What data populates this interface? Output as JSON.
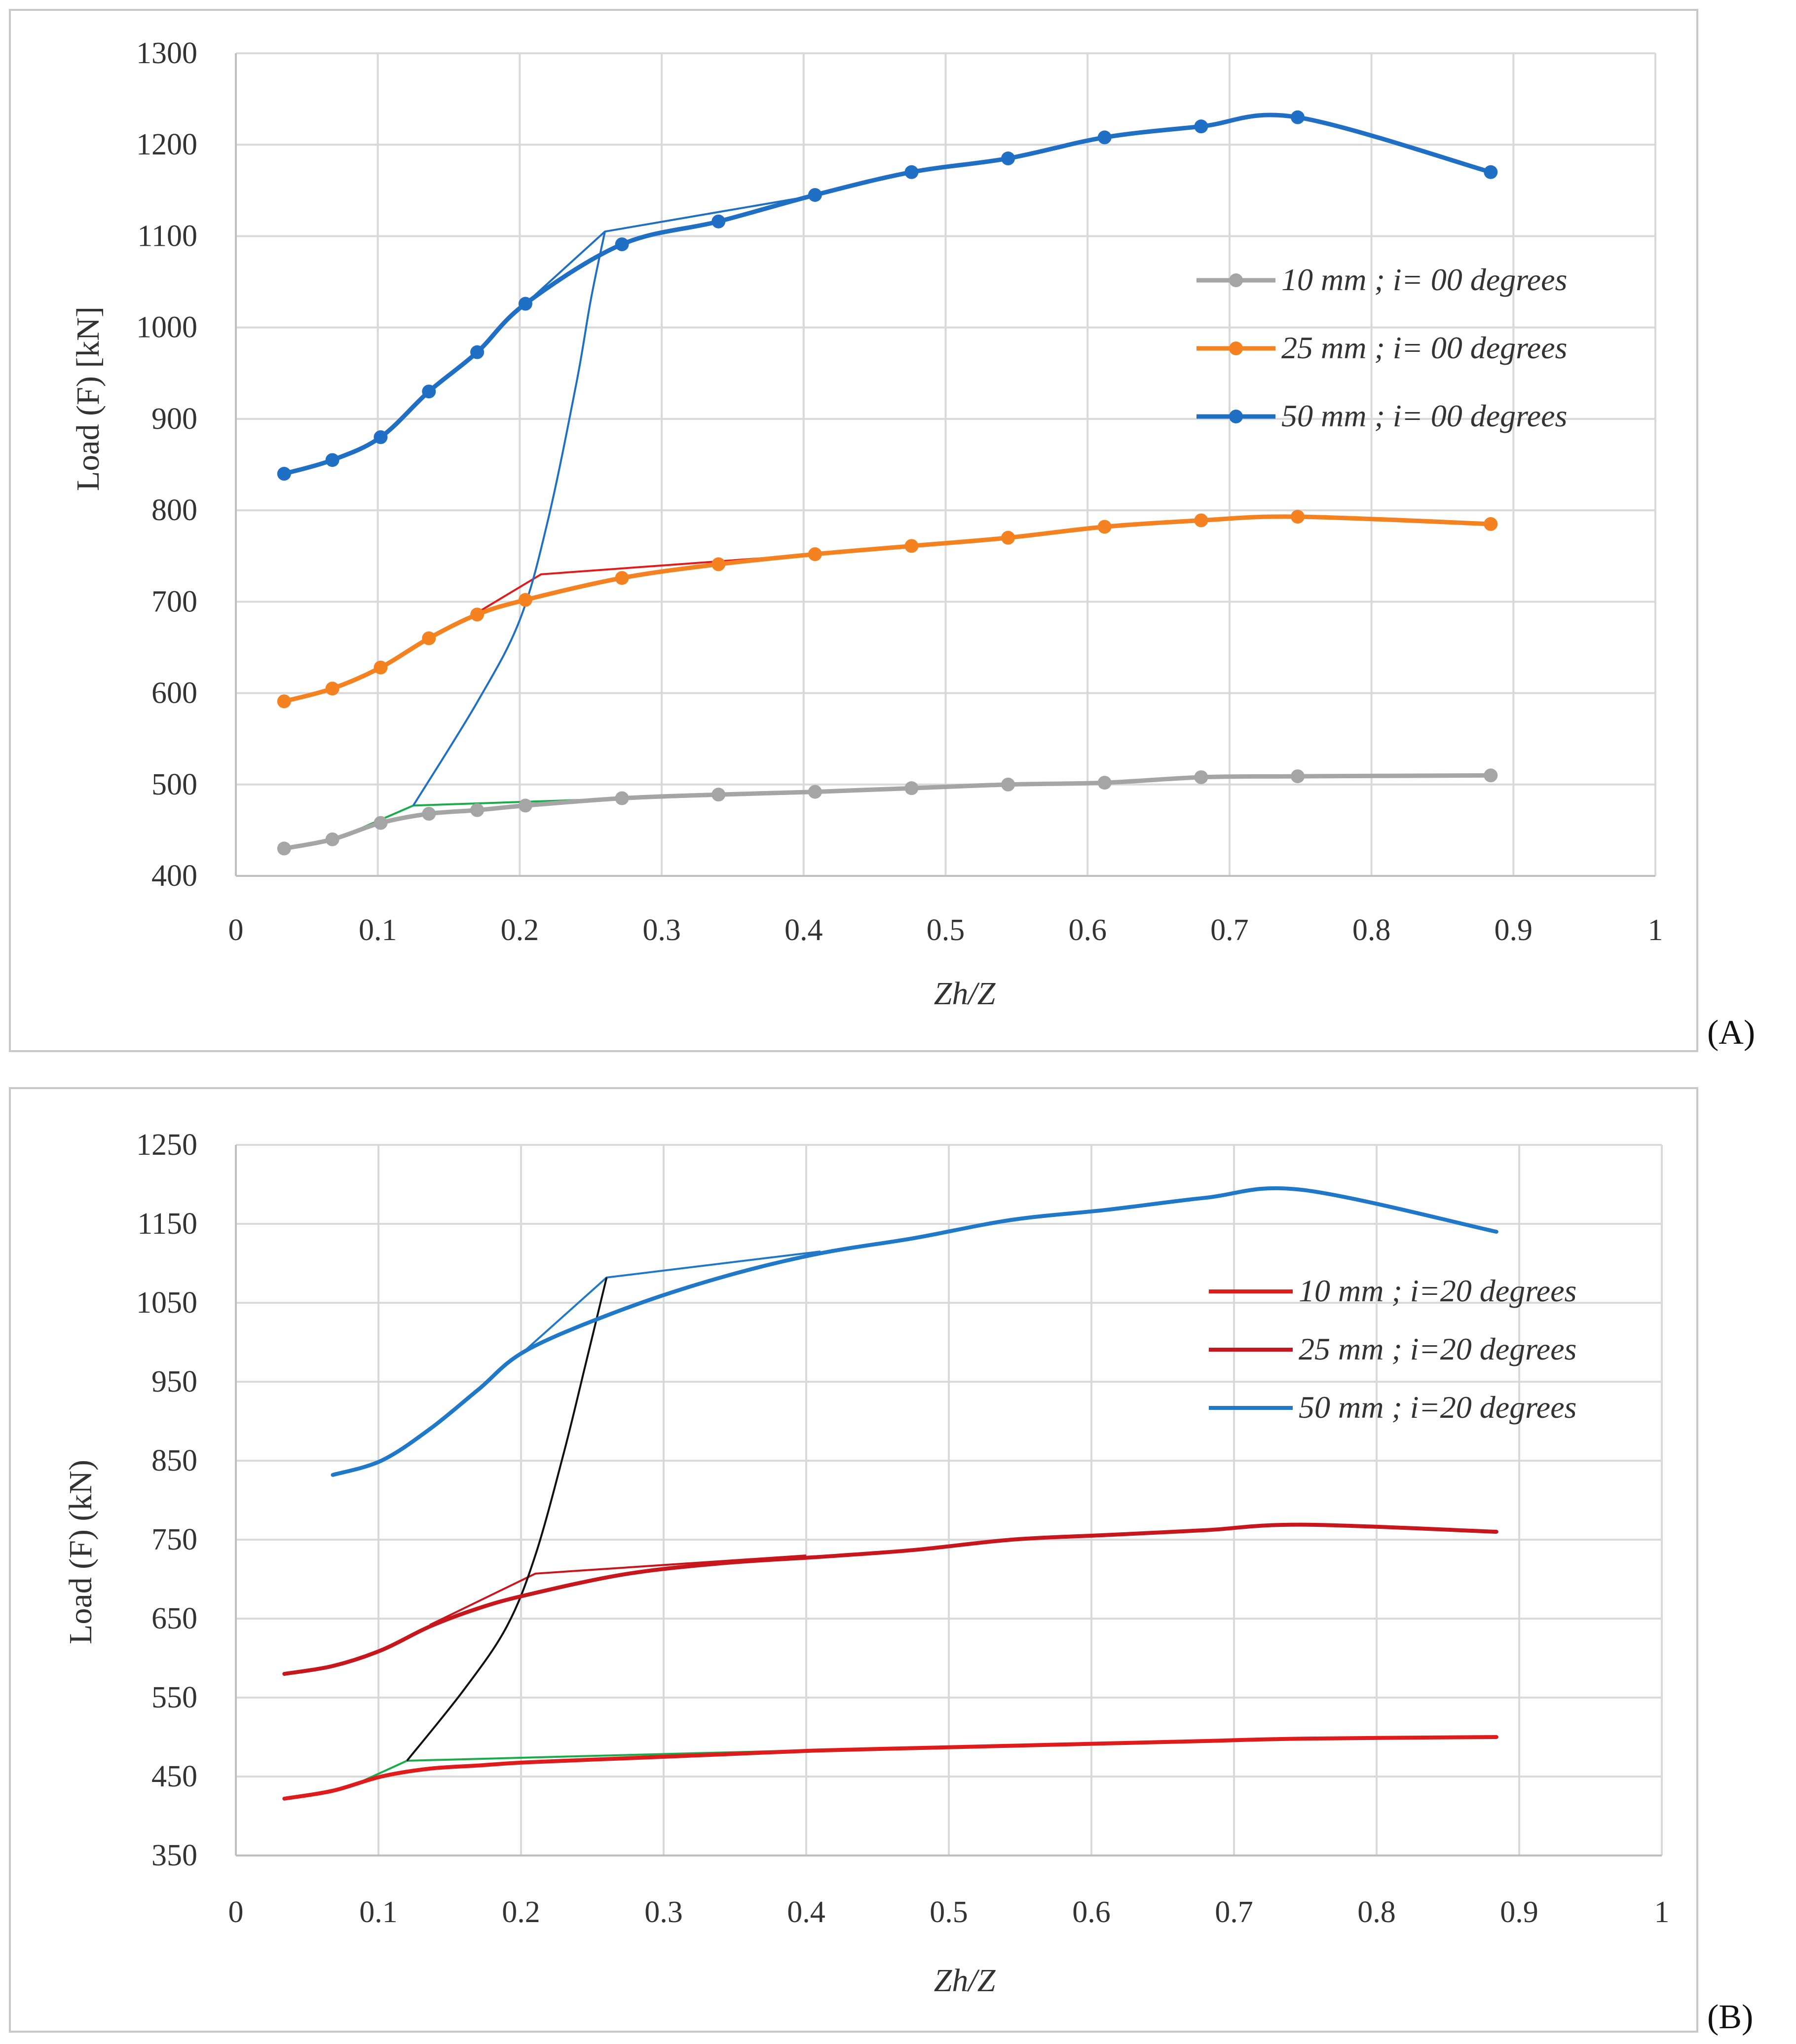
{
  "chart_data": [
    {
      "panel": "A",
      "panel_label_text": "(A)",
      "type": "line",
      "xlabel": "Zh/Z",
      "ylabel": "Load (F) [kN]",
      "xlim": [
        0,
        1
      ],
      "ylim": [
        400,
        1300
      ],
      "xticks": [
        0,
        0.1,
        0.2,
        0.3,
        0.4,
        0.5,
        0.6,
        0.7,
        0.8,
        0.9,
        1
      ],
      "xtick_labels": [
        "0",
        "0.1",
        "0.2",
        "0.3",
        "0.4",
        "0.5",
        "0.6",
        "0.7",
        "0.8",
        "0.9",
        "1"
      ],
      "yticks": [
        400,
        500,
        600,
        700,
        800,
        900,
        1000,
        1100,
        1200,
        1300
      ],
      "ytick_labels": [
        "400",
        "500",
        "600",
        "700",
        "800",
        "900",
        "1000",
        "1100",
        "1200",
        "1300"
      ],
      "grid": true,
      "legend_position": "right",
      "series": [
        {
          "name": "10 mm ; i= 00 degrees",
          "color": "#a5a5a5",
          "markers": true,
          "x": [
            0.034,
            0.068,
            0.102,
            0.136,
            0.17,
            0.204,
            0.272,
            0.34,
            0.408,
            0.476,
            0.544,
            0.612,
            0.68,
            0.748,
            0.884
          ],
          "y": [
            430,
            440,
            458,
            468,
            472,
            477,
            485,
            489,
            492,
            496,
            500,
            502,
            508,
            509,
            510
          ]
        },
        {
          "name": "25 mm ; i= 00 degrees",
          "color": "#f58220",
          "markers": true,
          "x": [
            0.034,
            0.068,
            0.102,
            0.136,
            0.17,
            0.204,
            0.272,
            0.34,
            0.408,
            0.476,
            0.544,
            0.612,
            0.68,
            0.748,
            0.884
          ],
          "y": [
            591,
            605,
            628,
            660,
            686,
            702,
            726,
            741,
            752,
            761,
            770,
            782,
            789,
            793,
            785
          ]
        },
        {
          "name": "50 mm ; i= 00 degrees",
          "color": "#1f6fc5",
          "markers": true,
          "x": [
            0.034,
            0.068,
            0.102,
            0.136,
            0.17,
            0.204,
            0.272,
            0.34,
            0.408,
            0.476,
            0.544,
            0.612,
            0.68,
            0.748,
            0.884
          ],
          "y": [
            840,
            855,
            880,
            930,
            973,
            1026,
            1091,
            1116,
            1145,
            1170,
            1185,
            1208,
            1220,
            1230,
            1170
          ]
        }
      ],
      "annotations": [
        {
          "kind": "fit-line",
          "color": "#1aab4b",
          "x": [
            0.07,
            0.125,
            0.66
          ],
          "y": [
            440,
            477,
            505
          ]
        },
        {
          "kind": "fit-line",
          "color": "#e01b1b",
          "x": [
            0.17,
            0.215,
            0.48
          ],
          "y": [
            688,
            730,
            760
          ]
        },
        {
          "kind": "fit-line",
          "color": "#1f6fc5",
          "x": [
            0.204,
            0.26,
            0.41
          ],
          "y": [
            1026,
            1105,
            1145
          ]
        },
        {
          "kind": "transition-curve",
          "color": "#1f6fc5",
          "x": [
            0.125,
            0.17,
            0.2,
            0.22,
            0.24,
            0.25,
            0.26
          ],
          "y": [
            477,
            590,
            680,
            790,
            940,
            1030,
            1105
          ]
        }
      ]
    },
    {
      "panel": "B",
      "panel_label_text": "(B)",
      "type": "line",
      "xlabel": "Zh/Z",
      "ylabel": "Load (F) (kN)",
      "xlim": [
        0,
        1
      ],
      "ylim": [
        350,
        1250
      ],
      "xticks": [
        0,
        0.1,
        0.2,
        0.3,
        0.4,
        0.5,
        0.6,
        0.7,
        0.8,
        0.9,
        1
      ],
      "xtick_labels": [
        "0",
        "0.1",
        "0.2",
        "0.3",
        "0.4",
        "0.5",
        "0.6",
        "0.7",
        "0.8",
        "0.9",
        "1"
      ],
      "yticks": [
        350,
        450,
        550,
        650,
        750,
        850,
        950,
        1050,
        1150,
        1250
      ],
      "ytick_labels": [
        "350",
        "450",
        "550",
        "650",
        "750",
        "850",
        "950",
        "1050",
        "1150",
        "1250"
      ],
      "grid": true,
      "legend_position": "right",
      "series": [
        {
          "name": "10 mm ;  i=20 degrees",
          "color": "#e01b1b",
          "markers": false,
          "x": [
            0.034,
            0.068,
            0.102,
            0.136,
            0.17,
            0.204,
            0.272,
            0.34,
            0.408,
            0.476,
            0.544,
            0.612,
            0.68,
            0.748,
            0.884
          ],
          "y": [
            422,
            432,
            450,
            460,
            464,
            468,
            473,
            478,
            483,
            486,
            489,
            492,
            495,
            498,
            500
          ]
        },
        {
          "name": "25 mm ;  i=20 degrees",
          "color": "#c8161d",
          "markers": false,
          "x": [
            0.034,
            0.068,
            0.102,
            0.136,
            0.17,
            0.204,
            0.272,
            0.34,
            0.408,
            0.476,
            0.544,
            0.612,
            0.68,
            0.748,
            0.884
          ],
          "y": [
            580,
            590,
            610,
            640,
            663,
            680,
            706,
            720,
            728,
            737,
            750,
            756,
            762,
            769,
            760
          ]
        },
        {
          "name": "50 mm ;  i=20 degrees",
          "color": "#1f78c8",
          "markers": false,
          "x": [
            0.068,
            0.102,
            0.136,
            0.17,
            0.204,
            0.272,
            0.34,
            0.408,
            0.476,
            0.544,
            0.612,
            0.68,
            0.748,
            0.884
          ],
          "y": [
            832,
            850,
            890,
            940,
            990,
            1042,
            1082,
            1112,
            1132,
            1155,
            1168,
            1183,
            1193,
            1140
          ]
        }
      ],
      "annotations": [
        {
          "kind": "fit-line",
          "color": "#1aab4b",
          "x": [
            0.08,
            0.12,
            0.48
          ],
          "y": [
            437,
            470,
            487
          ]
        },
        {
          "kind": "fit-line",
          "color": "#c8161d",
          "x": [
            0.136,
            0.21,
            0.4
          ],
          "y": [
            642,
            707,
            730
          ]
        },
        {
          "kind": "fit-line",
          "color": "#1f78c8",
          "x": [
            0.2,
            0.26,
            0.41
          ],
          "y": [
            985,
            1082,
            1115
          ]
        },
        {
          "kind": "transition-curve",
          "color": "#111111",
          "x": [
            0.12,
            0.16,
            0.19,
            0.21,
            0.23,
            0.245,
            0.26
          ],
          "y": [
            470,
            560,
            640,
            730,
            860,
            970,
            1082
          ]
        }
      ]
    }
  ]
}
